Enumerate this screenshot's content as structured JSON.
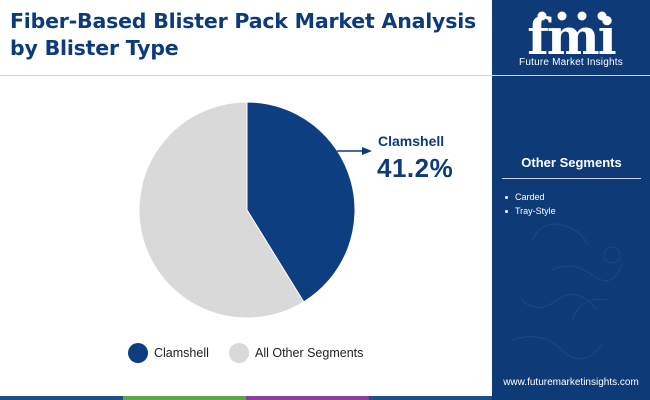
{
  "title": "Fiber-Based Blister Pack Market Analysis by Blister Type",
  "brand": {
    "logo_text": "fmi",
    "name": "Future Market Insights",
    "url": "www.futuremarketinsights.com"
  },
  "colors": {
    "navy": "#0e3a78",
    "title_blue": "#0d3b7a",
    "clamshell": "#0d3f80",
    "other": "#d9d9d9",
    "bar": [
      "#1f4e8c",
      "#5aa845",
      "#8a3fa0",
      "#1f4e8c"
    ]
  },
  "other_segments": {
    "title": "Other Segments",
    "items": [
      "Carded",
      "Tray-Style"
    ]
  },
  "callout": {
    "label": "Clamshell",
    "value": "41.2%"
  },
  "chart_data": {
    "type": "pie",
    "slices": [
      {
        "label": "Clamshell",
        "value": 41.2,
        "color": "#0d3f80"
      },
      {
        "label": "All Other Segments",
        "value": 58.8,
        "color": "#d9d9d9"
      }
    ],
    "start_angle": "12 o'clock",
    "direction": "clockwise",
    "legend": [
      "Clamshell",
      "All Other Segments"
    ],
    "legend_position": "bottom"
  }
}
